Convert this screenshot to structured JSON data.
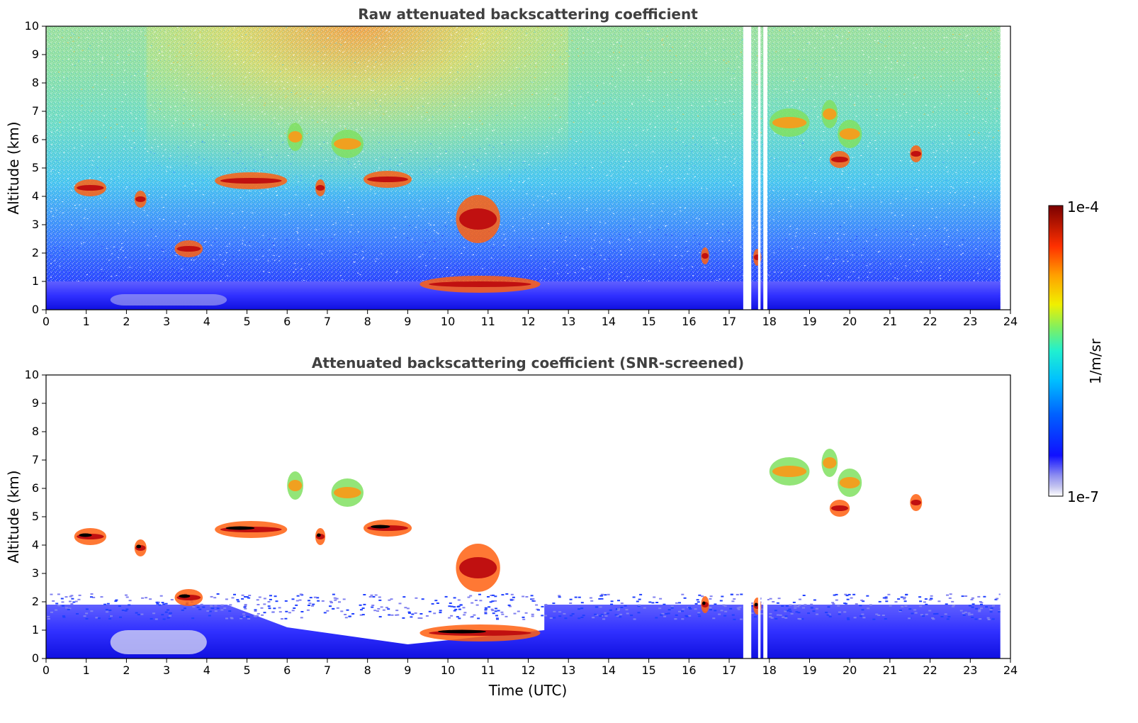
{
  "chart_data": [
    {
      "type": "heatmap",
      "title": "Raw attenuated backscattering coefficient",
      "xlabel": "",
      "ylabel": "Altitude (km)",
      "xlim": [
        0,
        24
      ],
      "ylim": [
        0,
        10
      ],
      "xticks": [
        "0",
        "1",
        "2",
        "3",
        "4",
        "5",
        "6",
        "7",
        "8",
        "9",
        "10",
        "11",
        "12",
        "13",
        "14",
        "15",
        "16",
        "17",
        "18",
        "19",
        "20",
        "21",
        "22",
        "23",
        "24"
      ],
      "yticks": [
        "0",
        "1",
        "2",
        "3",
        "4",
        "5",
        "6",
        "7",
        "8",
        "9",
        "10"
      ],
      "data_gaps_utc": [
        [
          17.35,
          17.55
        ],
        [
          17.72,
          17.78
        ],
        [
          17.85,
          17.95
        ],
        [
          23.75,
          24.0
        ]
      ],
      "features": [
        {
          "kind": "boundary_layer",
          "t_start": 0,
          "t_end": 23.75,
          "alt_top_km": 1.0
        },
        {
          "kind": "cloud_layer",
          "t_start": 0.7,
          "t_end": 1.5,
          "alt_km": 4.3
        },
        {
          "kind": "cloud_layer",
          "t_start": 2.2,
          "t_end": 2.5,
          "alt_km": 3.9
        },
        {
          "kind": "cloud_layer",
          "t_start": 3.2,
          "t_end": 3.9,
          "alt_km": 2.15
        },
        {
          "kind": "cloud_layer",
          "t_start": 4.2,
          "t_end": 6.0,
          "alt_km": 4.55
        },
        {
          "kind": "cloud_layer",
          "t_start": 6.7,
          "t_end": 6.95,
          "alt_km": 4.3
        },
        {
          "kind": "cloud_layer",
          "t_start": 6.0,
          "t_end": 6.4,
          "alt_km": 6.1
        },
        {
          "kind": "cloud_layer",
          "t_start": 7.1,
          "t_end": 7.9,
          "alt_km": 5.85
        },
        {
          "kind": "cloud_layer",
          "t_start": 7.9,
          "t_end": 9.1,
          "alt_km": 4.6
        },
        {
          "kind": "cloud_layer",
          "t_start": 10.2,
          "t_end": 11.3,
          "alt_km": 3.2
        },
        {
          "kind": "cloud_layer",
          "t_start": 9.3,
          "t_end": 12.3,
          "alt_km": 0.9
        },
        {
          "kind": "cloud_layer",
          "t_start": 16.3,
          "t_end": 16.5,
          "alt_km": 1.9
        },
        {
          "kind": "cloud_layer",
          "t_start": 17.6,
          "t_end": 17.8,
          "alt_km": 1.85
        },
        {
          "kind": "cloud_layer",
          "t_start": 18.0,
          "t_end": 19.0,
          "alt_km": 6.6
        },
        {
          "kind": "cloud_layer",
          "t_start": 19.3,
          "t_end": 19.7,
          "alt_km": 6.9
        },
        {
          "kind": "cloud_layer",
          "t_start": 19.7,
          "t_end": 20.3,
          "alt_km": 6.2
        },
        {
          "kind": "cloud_layer",
          "t_start": 19.5,
          "t_end": 20.0,
          "alt_km": 5.3
        },
        {
          "kind": "cloud_layer",
          "t_start": 21.5,
          "t_end": 21.8,
          "alt_km": 5.5
        }
      ]
    },
    {
      "type": "heatmap",
      "title": "Attenuated backscattering coefficient (SNR-screened)",
      "xlabel": "Time (UTC)",
      "ylabel": "Altitude (km)",
      "xlim": [
        0,
        24
      ],
      "ylim": [
        0,
        10
      ],
      "xticks": [
        "0",
        "1",
        "2",
        "3",
        "4",
        "5",
        "6",
        "7",
        "8",
        "9",
        "10",
        "11",
        "12",
        "13",
        "14",
        "15",
        "16",
        "17",
        "18",
        "19",
        "20",
        "21",
        "22",
        "23",
        "24"
      ],
      "yticks": [
        "0",
        "1",
        "2",
        "3",
        "4",
        "5",
        "6",
        "7",
        "8",
        "9",
        "10"
      ],
      "data_gaps_utc": [
        [
          17.35,
          17.55
        ],
        [
          17.72,
          17.78
        ],
        [
          17.85,
          17.95
        ],
        [
          23.75,
          24.0
        ]
      ],
      "boundary_layer_top_km": 1.9
    }
  ],
  "colorbar": {
    "label": "1/m/sr",
    "max_label": "1e-4",
    "min_label": "1e-7",
    "scale": "log",
    "colors": [
      "#ffffff",
      "#c8c8f0",
      "#9a9af5",
      "#0000ff",
      "#0060ff",
      "#00b0ff",
      "#00e6e6",
      "#40f0a0",
      "#a0f040",
      "#f0f000",
      "#ffb000",
      "#ff6000",
      "#e01000",
      "#800000"
    ]
  }
}
